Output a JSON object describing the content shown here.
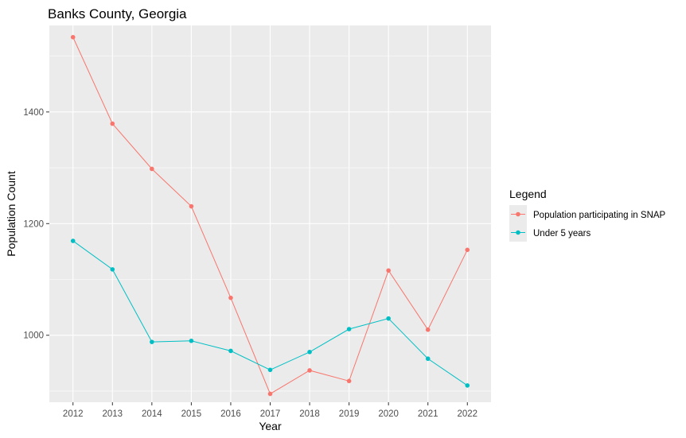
{
  "chart_data": {
    "type": "line",
    "title": "Banks County, Georgia",
    "xlabel": "Year",
    "ylabel": "Population Count",
    "x": [
      2012,
      2013,
      2014,
      2015,
      2016,
      2017,
      2018,
      2019,
      2020,
      2021,
      2022
    ],
    "xticks": [
      "2012",
      "2013",
      "2014",
      "2015",
      "2016",
      "2017",
      "2018",
      "2019",
      "2020",
      "2021",
      "2022"
    ],
    "yticks": [
      1000,
      1200,
      1400
    ],
    "ylim": [
      880,
      1555
    ],
    "grid": true,
    "legend": {
      "title": "Legend",
      "position": "right"
    },
    "series": [
      {
        "name": "Population participating in SNAP",
        "color": "#F8766D",
        "values": [
          1534,
          1379,
          1298,
          1231,
          1067,
          895,
          937,
          918,
          1116,
          1010,
          1153
        ]
      },
      {
        "name": "Under 5 years",
        "color": "#00BFC4",
        "values": [
          1169,
          1118,
          988,
          990,
          972,
          938,
          970,
          1011,
          1030,
          958,
          910
        ]
      }
    ]
  }
}
